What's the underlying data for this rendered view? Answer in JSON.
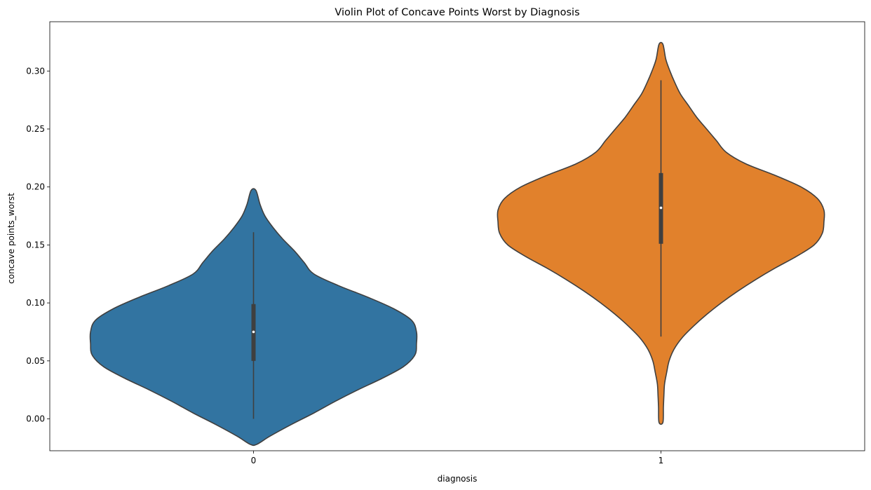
{
  "chart_data": {
    "type": "violin",
    "title": "Violin Plot of Concave Points Worst by Diagnosis",
    "xlabel": "diagnosis",
    "ylabel": "concave points_worst",
    "categories": [
      "0",
      "1"
    ],
    "ylim": [
      -0.0275,
      0.3425
    ],
    "yticks": [
      0.0,
      0.05,
      0.1,
      0.15,
      0.2,
      0.25,
      0.3
    ],
    "ytick_labels": [
      "0.00",
      "0.05",
      "0.10",
      "0.15",
      "0.20",
      "0.25",
      "0.30"
    ],
    "grid": false,
    "legend": "none",
    "series": [
      {
        "category": "0",
        "color": "#3274a1",
        "violin_extent": [
          -0.022,
          0.197
        ],
        "box": {
          "min": 0.0,
          "q1": 0.05,
          "median": 0.075,
          "q3": 0.099,
          "max": 0.161
        },
        "density_profile": [
          [
            -0.022,
            0.02
          ],
          [
            -0.015,
            0.1
          ],
          [
            -0.005,
            0.23
          ],
          [
            0.005,
            0.37
          ],
          [
            0.015,
            0.5
          ],
          [
            0.025,
            0.64
          ],
          [
            0.035,
            0.79
          ],
          [
            0.045,
            0.92
          ],
          [
            0.055,
            0.99
          ],
          [
            0.065,
            1.0
          ],
          [
            0.075,
            1.0
          ],
          [
            0.085,
            0.97
          ],
          [
            0.095,
            0.86
          ],
          [
            0.105,
            0.7
          ],
          [
            0.115,
            0.52
          ],
          [
            0.125,
            0.37
          ],
          [
            0.135,
            0.31
          ],
          [
            0.145,
            0.25
          ],
          [
            0.155,
            0.18
          ],
          [
            0.165,
            0.12
          ],
          [
            0.175,
            0.07
          ],
          [
            0.185,
            0.04
          ],
          [
            0.197,
            0.015
          ]
        ]
      },
      {
        "category": "1",
        "color": "#e1812c",
        "violin_extent": [
          -0.003,
          0.323
        ],
        "box": {
          "min": 0.071,
          "q1": 0.151,
          "median": 0.182,
          "q3": 0.212,
          "max": 0.292
        },
        "density_profile": [
          [
            -0.003,
            0.012
          ],
          [
            0.01,
            0.015
          ],
          [
            0.02,
            0.018
          ],
          [
            0.03,
            0.022
          ],
          [
            0.04,
            0.035
          ],
          [
            0.05,
            0.05
          ],
          [
            0.06,
            0.08
          ],
          [
            0.07,
            0.13
          ],
          [
            0.08,
            0.2
          ],
          [
            0.09,
            0.28
          ],
          [
            0.1,
            0.37
          ],
          [
            0.11,
            0.47
          ],
          [
            0.12,
            0.58
          ],
          [
            0.13,
            0.7
          ],
          [
            0.14,
            0.83
          ],
          [
            0.15,
            0.94
          ],
          [
            0.16,
            0.99
          ],
          [
            0.17,
            1.0
          ],
          [
            0.18,
            1.0
          ],
          [
            0.19,
            0.96
          ],
          [
            0.2,
            0.86
          ],
          [
            0.21,
            0.7
          ],
          [
            0.22,
            0.52
          ],
          [
            0.23,
            0.4
          ],
          [
            0.24,
            0.34
          ],
          [
            0.25,
            0.28
          ],
          [
            0.26,
            0.22
          ],
          [
            0.27,
            0.17
          ],
          [
            0.28,
            0.12
          ],
          [
            0.29,
            0.085
          ],
          [
            0.3,
            0.055
          ],
          [
            0.31,
            0.03
          ],
          [
            0.323,
            0.012
          ]
        ]
      }
    ]
  }
}
